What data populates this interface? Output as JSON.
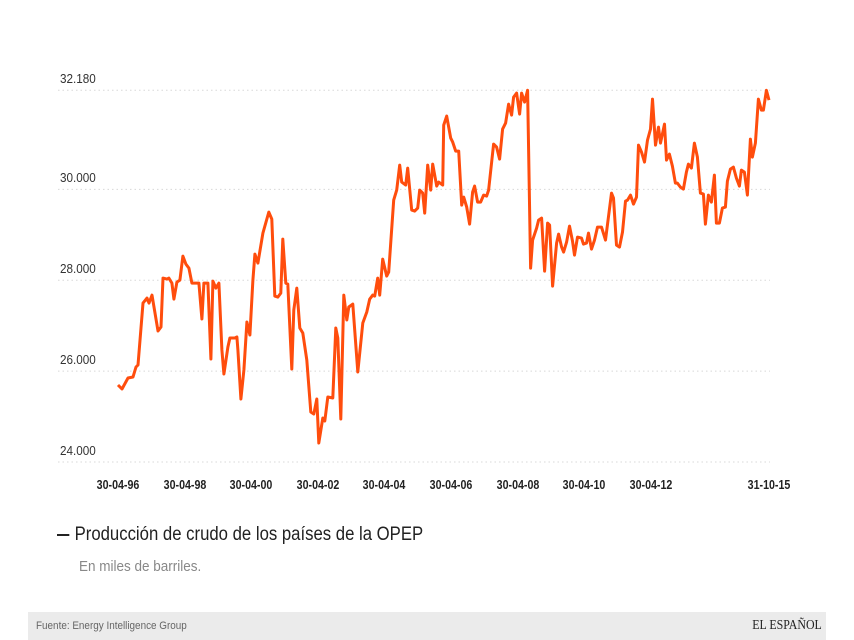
{
  "chart_data": {
    "type": "line",
    "title": "Producción de crudo de los países de la OPEP",
    "subtitle": "En miles de barriles.",
    "xlabel": "",
    "ylabel": "",
    "ylim": [
      24000,
      32180
    ],
    "yticks": [
      {
        "value": 32180,
        "label": "32.180"
      },
      {
        "value": 30000,
        "label": "30.000"
      },
      {
        "value": 28000,
        "label": "28.000"
      },
      {
        "value": 26000,
        "label": "26.000"
      },
      {
        "value": 24000,
        "label": "24.000"
      }
    ],
    "xticks": [
      {
        "value": 1996.33,
        "label": "30-04-96"
      },
      {
        "value": 1998.33,
        "label": "30-04-98"
      },
      {
        "value": 2000.33,
        "label": "30-04-00"
      },
      {
        "value": 2002.33,
        "label": "30-04-02"
      },
      {
        "value": 2004.33,
        "label": "30-04-04"
      },
      {
        "value": 2006.33,
        "label": "30-04-06"
      },
      {
        "value": 2008.33,
        "label": "30-04-08"
      },
      {
        "value": 2010.33,
        "label": "30-04-10"
      },
      {
        "value": 2012.33,
        "label": "30-04-12"
      },
      {
        "value": 2015.88,
        "label": "31-10-15"
      }
    ],
    "grid": true,
    "legend_position": "bottom-left",
    "series": [
      {
        "name": "Producción de crudo de los países de la OPEP",
        "color": "#ff4d0d",
        "points": [
          [
            1996.33,
            25694
          ],
          [
            1996.45,
            25606
          ],
          [
            1996.63,
            25848
          ],
          [
            1996.78,
            25870
          ],
          [
            1996.87,
            26090
          ],
          [
            1996.93,
            26134
          ],
          [
            1997.08,
            27498
          ],
          [
            1997.2,
            27608
          ],
          [
            1997.26,
            27498
          ],
          [
            1997.35,
            27674
          ],
          [
            1997.53,
            26882
          ],
          [
            1997.62,
            26970
          ],
          [
            1997.68,
            28048
          ],
          [
            1997.8,
            28026
          ],
          [
            1997.86,
            28048
          ],
          [
            1997.95,
            27938
          ],
          [
            1998.01,
            27586
          ],
          [
            1998.1,
            27960
          ],
          [
            1998.19,
            28004
          ],
          [
            1998.28,
            28532
          ],
          [
            1998.37,
            28356
          ],
          [
            1998.46,
            28268
          ],
          [
            1998.55,
            27938
          ],
          [
            1998.76,
            27938
          ],
          [
            1998.85,
            27146
          ],
          [
            1998.91,
            27938
          ],
          [
            1999.03,
            27938
          ],
          [
            1999.12,
            26266
          ],
          [
            1999.18,
            27982
          ],
          [
            1999.27,
            27828
          ],
          [
            1999.36,
            27938
          ],
          [
            1999.45,
            26464
          ],
          [
            1999.51,
            25936
          ],
          [
            1999.63,
            26530
          ],
          [
            1999.69,
            26728
          ],
          [
            1999.84,
            26728
          ],
          [
            1999.9,
            26750
          ],
          [
            1999.93,
            26464
          ],
          [
            2000.02,
            25386
          ],
          [
            2000.11,
            26024
          ],
          [
            2000.2,
            27080
          ],
          [
            2000.29,
            26794
          ],
          [
            2000.38,
            28004
          ],
          [
            2000.44,
            28576
          ],
          [
            2000.53,
            28378
          ],
          [
            2000.68,
            29038
          ],
          [
            2000.86,
            29500
          ],
          [
            2000.95,
            29346
          ],
          [
            2001.04,
            27652
          ],
          [
            2001.13,
            27630
          ],
          [
            2001.22,
            27718
          ],
          [
            2001.28,
            28906
          ],
          [
            2001.37,
            27938
          ],
          [
            2001.43,
            27916
          ],
          [
            2001.55,
            26046
          ],
          [
            2001.61,
            27344
          ],
          [
            2001.7,
            27828
          ],
          [
            2001.79,
            26948
          ],
          [
            2001.88,
            26838
          ],
          [
            2002.0,
            26244
          ],
          [
            2002.12,
            25100
          ],
          [
            2002.21,
            25056
          ],
          [
            2002.3,
            25386
          ],
          [
            2002.36,
            24418
          ],
          [
            2002.48,
            24968
          ],
          [
            2002.54,
            24902
          ],
          [
            2002.63,
            25430
          ],
          [
            2002.78,
            25408
          ],
          [
            2002.87,
            26948
          ],
          [
            2002.93,
            26728
          ],
          [
            2003.02,
            24946
          ],
          [
            2003.11,
            27674
          ],
          [
            2003.2,
            27124
          ],
          [
            2003.26,
            27410
          ],
          [
            2003.38,
            27476
          ],
          [
            2003.53,
            25980
          ],
          [
            2003.68,
            27058
          ],
          [
            2003.8,
            27300
          ],
          [
            2003.89,
            27586
          ],
          [
            2003.98,
            27674
          ],
          [
            2004.04,
            27652
          ],
          [
            2004.13,
            28048
          ],
          [
            2004.19,
            27674
          ],
          [
            2004.28,
            28466
          ],
          [
            2004.4,
            28092
          ],
          [
            2004.46,
            28180
          ],
          [
            2004.61,
            29764
          ],
          [
            2004.7,
            29984
          ],
          [
            2004.79,
            30534
          ],
          [
            2004.85,
            30160
          ],
          [
            2004.97,
            30094
          ],
          [
            2005.03,
            30468
          ],
          [
            2005.15,
            29544
          ],
          [
            2005.24,
            29522
          ],
          [
            2005.33,
            29588
          ],
          [
            2005.39,
            29984
          ],
          [
            2005.48,
            29918
          ],
          [
            2005.54,
            29478
          ],
          [
            2005.63,
            30534
          ],
          [
            2005.72,
            29984
          ],
          [
            2005.78,
            30556
          ],
          [
            2005.9,
            30072
          ],
          [
            2005.96,
            30160
          ],
          [
            2006.08,
            30094
          ],
          [
            2006.11,
            31414
          ],
          [
            2006.2,
            31612
          ],
          [
            2006.32,
            31128
          ],
          [
            2006.38,
            31040
          ],
          [
            2006.47,
            30842
          ],
          [
            2006.56,
            30842
          ],
          [
            2006.65,
            29654
          ],
          [
            2006.71,
            29830
          ],
          [
            2006.8,
            29610
          ],
          [
            2006.89,
            29236
          ],
          [
            2006.98,
            29940
          ],
          [
            2007.04,
            30072
          ],
          [
            2007.13,
            29720
          ],
          [
            2007.22,
            29720
          ],
          [
            2007.31,
            29874
          ],
          [
            2007.4,
            29852
          ],
          [
            2007.46,
            29984
          ],
          [
            2007.61,
            30996
          ],
          [
            2007.7,
            30930
          ],
          [
            2007.79,
            30666
          ],
          [
            2007.88,
            31326
          ],
          [
            2007.97,
            31458
          ],
          [
            2008.06,
            31876
          ],
          [
            2008.15,
            31634
          ],
          [
            2008.21,
            32030
          ],
          [
            2008.3,
            32118
          ],
          [
            2008.39,
            31656
          ],
          [
            2008.45,
            32118
          ],
          [
            2008.54,
            31920
          ],
          [
            2008.63,
            32180
          ],
          [
            2008.72,
            28268
          ],
          [
            2008.78,
            28884
          ],
          [
            2008.9,
            29148
          ],
          [
            2008.96,
            29324
          ],
          [
            2009.05,
            29368
          ],
          [
            2009.14,
            28202
          ],
          [
            2009.23,
            29258
          ],
          [
            2009.29,
            29214
          ],
          [
            2009.38,
            27872
          ],
          [
            2009.5,
            28818
          ],
          [
            2009.56,
            29016
          ],
          [
            2009.65,
            28730
          ],
          [
            2009.71,
            28620
          ],
          [
            2009.8,
            28840
          ],
          [
            2009.89,
            29192
          ],
          [
            2009.98,
            28862
          ],
          [
            2010.04,
            28554
          ],
          [
            2010.13,
            28950
          ],
          [
            2010.25,
            28928
          ],
          [
            2010.31,
            28796
          ],
          [
            2010.4,
            28818
          ],
          [
            2010.46,
            29038
          ],
          [
            2010.55,
            28686
          ],
          [
            2010.64,
            28884
          ],
          [
            2010.73,
            29170
          ],
          [
            2010.85,
            29170
          ],
          [
            2010.97,
            28884
          ],
          [
            2011.15,
            29918
          ],
          [
            2011.21,
            29808
          ],
          [
            2011.3,
            28774
          ],
          [
            2011.39,
            28730
          ],
          [
            2011.48,
            29060
          ],
          [
            2011.57,
            29742
          ],
          [
            2011.63,
            29764
          ],
          [
            2011.72,
            29874
          ],
          [
            2011.81,
            29676
          ],
          [
            2011.9,
            29830
          ],
          [
            2011.96,
            30974
          ],
          [
            2012.05,
            30820
          ],
          [
            2012.14,
            30600
          ],
          [
            2012.23,
            31084
          ],
          [
            2012.32,
            31326
          ],
          [
            2012.38,
            31986
          ],
          [
            2012.47,
            30974
          ],
          [
            2012.56,
            31370
          ],
          [
            2012.62,
            31018
          ],
          [
            2012.74,
            31436
          ],
          [
            2012.8,
            30644
          ],
          [
            2012.89,
            30776
          ],
          [
            2012.98,
            30512
          ],
          [
            2013.07,
            30138
          ],
          [
            2013.13,
            30138
          ],
          [
            2013.22,
            30050
          ],
          [
            2013.31,
            30006
          ],
          [
            2013.4,
            30380
          ],
          [
            2013.46,
            30556
          ],
          [
            2013.55,
            30468
          ],
          [
            2013.64,
            31018
          ],
          [
            2013.73,
            30710
          ],
          [
            2013.82,
            29918
          ],
          [
            2013.91,
            29896
          ],
          [
            2013.97,
            29236
          ],
          [
            2014.06,
            29874
          ],
          [
            2014.15,
            29720
          ],
          [
            2014.24,
            30314
          ],
          [
            2014.3,
            29258
          ],
          [
            2014.39,
            29258
          ],
          [
            2014.48,
            29588
          ],
          [
            2014.57,
            29610
          ],
          [
            2014.63,
            30182
          ],
          [
            2014.72,
            30446
          ],
          [
            2014.81,
            30490
          ],
          [
            2014.9,
            30248
          ],
          [
            2014.99,
            30072
          ],
          [
            2015.05,
            30424
          ],
          [
            2015.14,
            30380
          ],
          [
            2015.23,
            29874
          ],
          [
            2015.32,
            31106
          ],
          [
            2015.38,
            30710
          ],
          [
            2015.47,
            31018
          ],
          [
            2015.56,
            31986
          ],
          [
            2015.65,
            31744
          ],
          [
            2015.71,
            31744
          ],
          [
            2015.8,
            32180
          ],
          [
            2015.88,
            31964
          ]
        ]
      }
    ],
    "source": "Fuente: Energy Intelligence Group",
    "brand": "EL ESPAÑOL"
  }
}
